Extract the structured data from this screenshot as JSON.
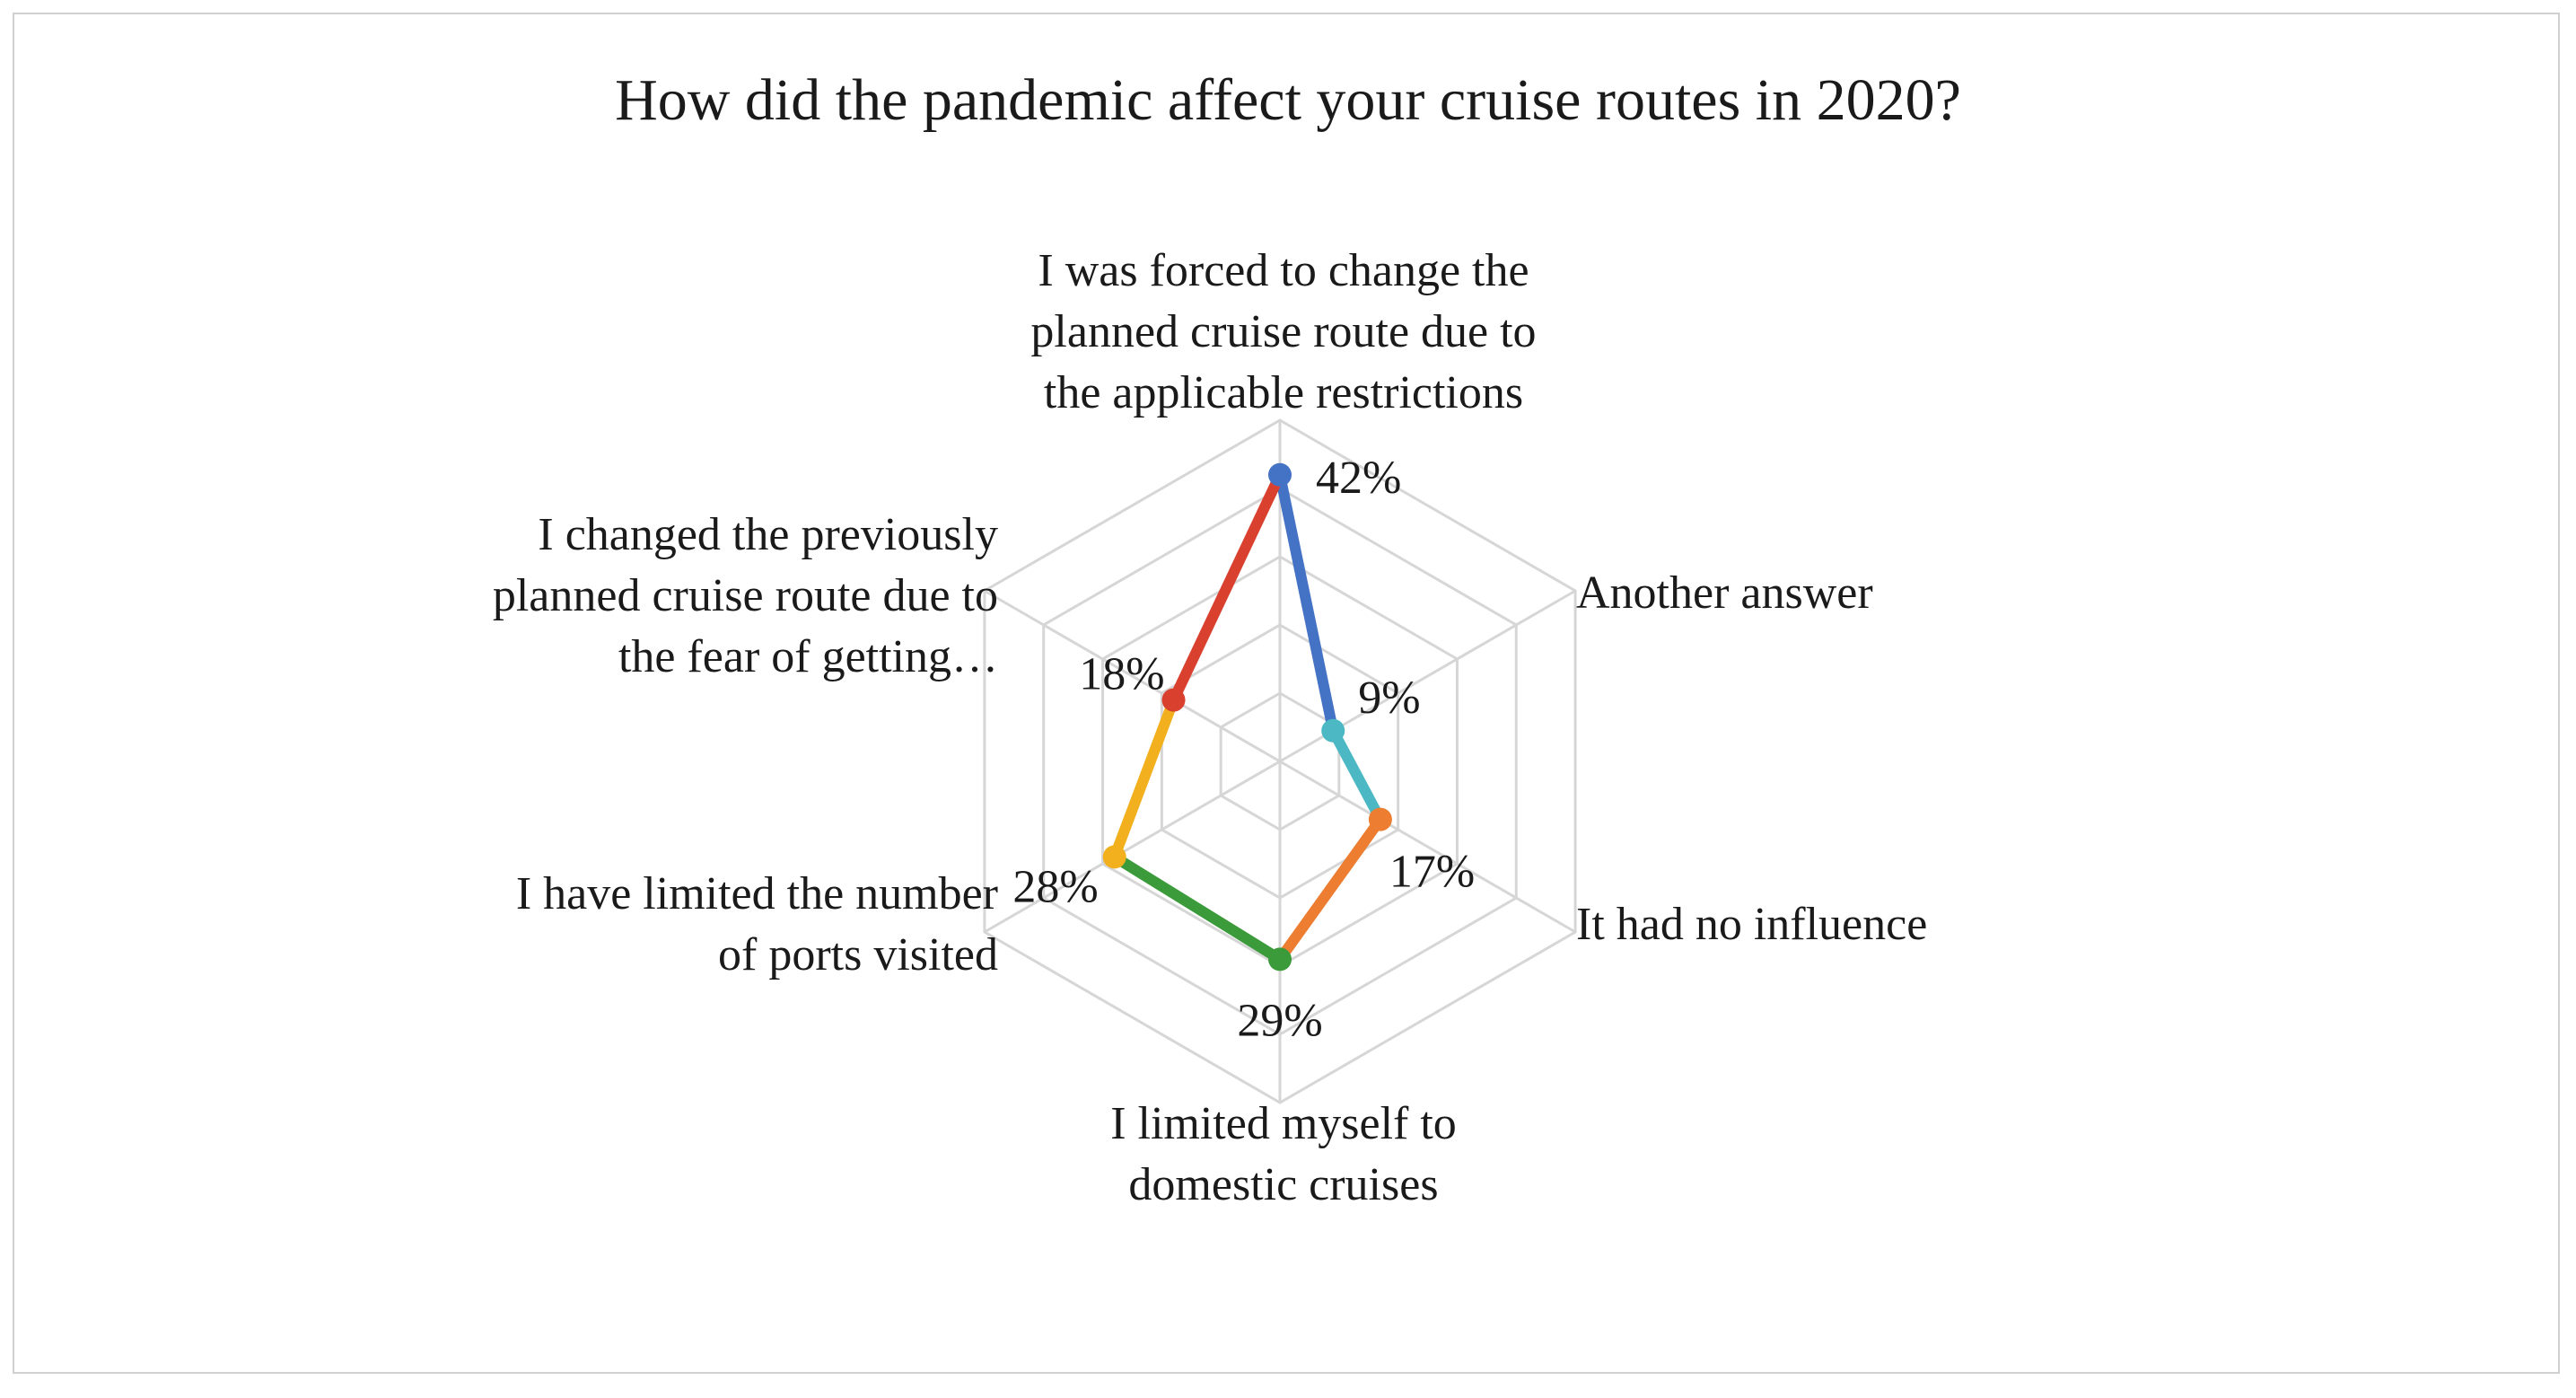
{
  "chart_data": {
    "type": "radar",
    "title": "How did the pandemic affect your cruise routes in 2020?",
    "categories": [
      [
        "I was forced to change the",
        "planned cruise route due to",
        "the applicable restrictions"
      ],
      [
        "Another answer"
      ],
      [
        "It had no influence"
      ],
      [
        "I limited myself to",
        "domestic cruises"
      ],
      [
        "I have limited the number",
        "of ports visited"
      ],
      [
        "I changed the previously",
        "planned cruise route due to",
        "the fear of getting…"
      ]
    ],
    "values": [
      42,
      9,
      17,
      29,
      28,
      18
    ],
    "value_labels": [
      "42%",
      "9%",
      "17%",
      "29%",
      "28%",
      "18%"
    ],
    "segment_colors": [
      "#4472C4",
      "#4BB8C4",
      "#ED7D31",
      "#3B9B3A",
      "#F2B01E",
      "#D9402E"
    ],
    "radial_max": 50,
    "grid_levels": 5,
    "grid": true,
    "legend": false
  }
}
